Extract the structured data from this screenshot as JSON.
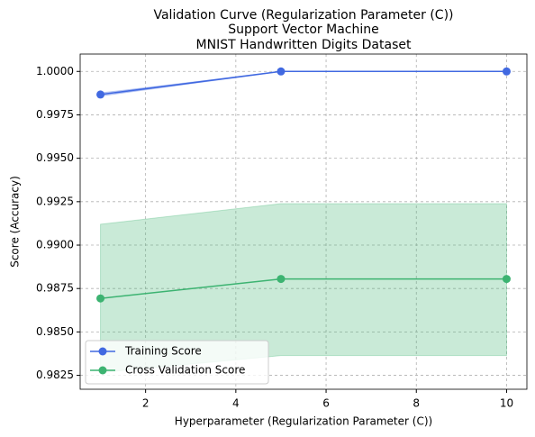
{
  "chart_data": {
    "type": "line",
    "title": [
      "Validation Curve (Regularization Parameter (C))",
      "Support Vector Machine",
      "MNIST Handwritten Digits Dataset"
    ],
    "xlabel": "Hyperparameter (Regularization Parameter (C))",
    "ylabel": "Score (Accuracy)",
    "x": [
      1,
      5,
      10
    ],
    "series": [
      {
        "name": "Training Score",
        "color": "#4169e1",
        "values": [
          0.99867,
          1.0,
          1.0
        ],
        "lower": [
          0.99858,
          1.0,
          1.0
        ],
        "upper": [
          0.99876,
          1.0,
          1.0
        ]
      },
      {
        "name": "Cross Validation Score",
        "color": "#3cb371",
        "values": [
          0.98693,
          0.98805,
          0.98805
        ],
        "lower": [
          0.98266,
          0.98364,
          0.98364
        ],
        "upper": [
          0.9912,
          0.99239,
          0.99239
        ]
      }
    ],
    "xlim": [
      0.55,
      10.45
    ],
    "ylim": [
      0.9817,
      1.001
    ],
    "xticks": [
      2,
      4,
      6,
      8,
      10
    ],
    "yticks": [
      0.9825,
      {
        "value": 0.985,
        "label": "0.9850"
      },
      0.9875,
      {
        "value": 0.99,
        "label": "0.9900"
      },
      0.9925,
      {
        "value": 0.995,
        "label": "0.9950"
      },
      0.9975,
      {
        "value": 1.0,
        "label": "1.0000"
      }
    ],
    "grid": true,
    "legend": "lower left"
  }
}
